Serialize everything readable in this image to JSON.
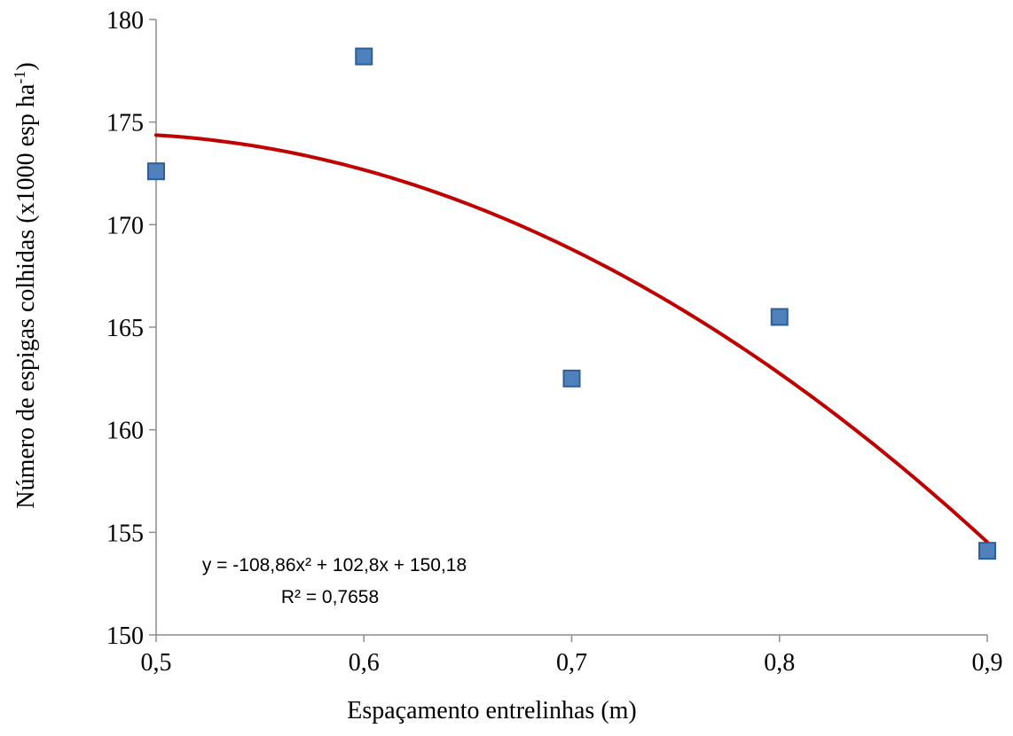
{
  "chart_data": {
    "type": "scatter",
    "title": "",
    "xlabel": "Espaçamento entrelinhas (m)",
    "ylabel_main": "Número de espigas colhidas (x1000 esp ha",
    "ylabel_sup": "-1",
    "ylabel_end": ")",
    "xlim": [
      0.5,
      0.9
    ],
    "ylim": [
      150,
      180
    ],
    "x_ticks": [
      {
        "value": 0.5,
        "label": "0,5"
      },
      {
        "value": 0.6,
        "label": "0,6"
      },
      {
        "value": 0.7,
        "label": "0,7"
      },
      {
        "value": 0.8,
        "label": "0,8"
      },
      {
        "value": 0.9,
        "label": "0,9"
      }
    ],
    "y_ticks": [
      {
        "value": 150,
        "label": "150"
      },
      {
        "value": 155,
        "label": "155"
      },
      {
        "value": 160,
        "label": "160"
      },
      {
        "value": 165,
        "label": "165"
      },
      {
        "value": 170,
        "label": "170"
      },
      {
        "value": 175,
        "label": "175"
      },
      {
        "value": 180,
        "label": "180"
      }
    ],
    "grid": false,
    "points": [
      {
        "x": 0.5,
        "y": 172.6
      },
      {
        "x": 0.6,
        "y": 178.2
      },
      {
        "x": 0.7,
        "y": 162.5
      },
      {
        "x": 0.8,
        "y": 165.5
      },
      {
        "x": 0.9,
        "y": 154.1
      }
    ],
    "trendline": {
      "type": "polynomial",
      "coefficients": [
        -108.86,
        102.8,
        150.18
      ]
    },
    "equation_text": "y = -108,86x² + 102,8x + 150,18",
    "r2_text": "R² = 0,7658",
    "colors": {
      "marker_fill": "#4f81bd",
      "marker_stroke": "#2e5f97",
      "trendline": "#c00000",
      "axis": "#8c8c8c"
    }
  }
}
